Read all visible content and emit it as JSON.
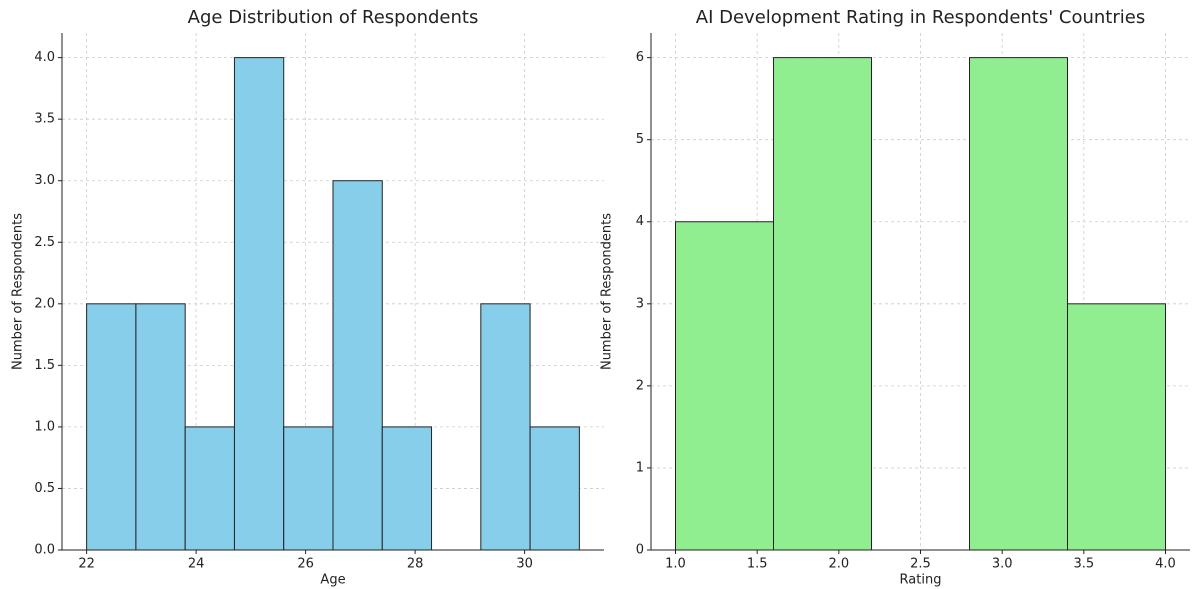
{
  "chart_data": [
    {
      "type": "histogram",
      "title": "Age Distribution of Respondents",
      "x_label": "Age",
      "y_label": "Number of Respondents",
      "bins": [
        22,
        22.9,
        23.8,
        24.7,
        25.6,
        26.5,
        27.4,
        28.3,
        29.2,
        30.1,
        31
      ],
      "values": [
        2,
        2,
        1,
        4,
        1,
        3,
        1,
        0,
        2,
        1
      ],
      "color": "#87ceeb",
      "xlim": [
        21.55,
        31.45
      ],
      "xticks": [
        22,
        24,
        26,
        28,
        30
      ],
      "ylim": [
        0,
        4.2
      ],
      "yticks": [
        {
          "value": 0,
          "label": "0.0"
        },
        {
          "value": 0.5,
          "label": "0.5"
        },
        {
          "value": 1,
          "label": "1.0"
        },
        {
          "value": 1.5,
          "label": "1.5"
        },
        {
          "value": 2,
          "label": "2.0"
        },
        {
          "value": 2.5,
          "label": "2.5"
        },
        {
          "value": 3,
          "label": "3.0"
        },
        {
          "value": 3.5,
          "label": "3.5"
        },
        {
          "value": 4,
          "label": "4.0"
        }
      ],
      "grid": true
    },
    {
      "type": "histogram",
      "title": "AI Development Rating in Respondents' Countries",
      "x_label": "Rating",
      "y_label": "Number of Respondents",
      "bins": [
        1,
        1.6,
        2.2,
        2.8,
        3.4,
        4
      ],
      "values": [
        4,
        6,
        0,
        6,
        3
      ],
      "color": "#90ee90",
      "xlim": [
        0.85,
        4.15
      ],
      "xticks": [
        {
          "value": 1,
          "label": "1.0"
        },
        {
          "value": 1.5,
          "label": "1.5"
        },
        {
          "value": 2,
          "label": "2.0"
        },
        {
          "value": 2.5,
          "label": "2.5"
        },
        {
          "value": 3,
          "label": "3.0"
        },
        {
          "value": 3.5,
          "label": "3.5"
        },
        {
          "value": 4,
          "label": "4.0"
        }
      ],
      "ylim": [
        0,
        6.3
      ],
      "yticks": [
        0,
        1,
        2,
        3,
        4,
        5,
        6
      ],
      "grid": true
    }
  ]
}
